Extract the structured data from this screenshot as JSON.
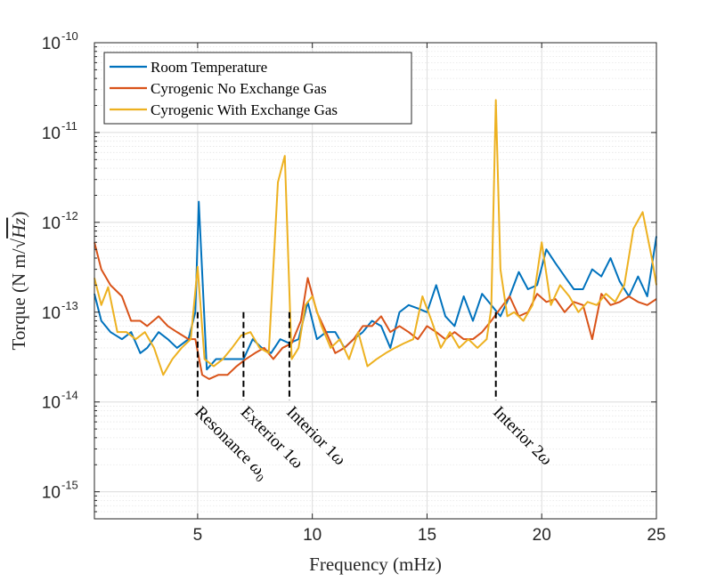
{
  "chart_data": {
    "type": "line",
    "title": "",
    "xlabel": "Frequency (mHz)",
    "ylabel_parts": {
      "prefix": "Torque (N m/",
      "radicand": "Hz",
      "suffix": ")"
    },
    "xlim": [
      0.5,
      25
    ],
    "ylim": [
      5e-16,
      1e-10
    ],
    "yscale": "log",
    "grid": true,
    "x_ticks": [
      5,
      10,
      15,
      20,
      25
    ],
    "x_tick_labels": [
      "5",
      "10",
      "15",
      "20",
      "25"
    ],
    "y_ticks": [
      1e-15,
      1e-14,
      1e-13,
      1e-12,
      1e-11,
      1e-10
    ],
    "y_tick_labels": [
      {
        "base": "10",
        "exp": "-15"
      },
      {
        "base": "10",
        "exp": "-14"
      },
      {
        "base": "10",
        "exp": "-13"
      },
      {
        "base": "10",
        "exp": "-12"
      },
      {
        "base": "10",
        "exp": "-11"
      },
      {
        "base": "10",
        "exp": "-10"
      }
    ],
    "legend_position": "top-left",
    "series": [
      {
        "name": "Room Temperature",
        "color": "#0072BD",
        "x": [
          0.5,
          0.8,
          1.2,
          1.7,
          2.1,
          2.5,
          2.8,
          3.3,
          3.7,
          4.1,
          4.6,
          4.9,
          5.05,
          5.4,
          5.8,
          6.2,
          6.6,
          7.0,
          7.4,
          7.8,
          8.2,
          8.6,
          9.0,
          9.4,
          9.8,
          10.2,
          10.6,
          11.0,
          11.4,
          11.8,
          12.2,
          12.6,
          13.0,
          13.4,
          13.8,
          14.2,
          14.6,
          15.0,
          15.4,
          15.8,
          16.2,
          16.6,
          17.0,
          17.4,
          17.8,
          18.2,
          18.6,
          19.0,
          19.4,
          19.8,
          20.2,
          20.6,
          21.0,
          21.4,
          21.8,
          22.2,
          22.6,
          23.0,
          23.4,
          23.8,
          24.2,
          24.6,
          25.0
        ],
        "values": [
          1.6e-13,
          8e-14,
          6e-14,
          5e-14,
          6e-14,
          3.5e-14,
          4e-14,
          6e-14,
          5e-14,
          4e-14,
          5e-14,
          1e-13,
          1.7e-12,
          2.3e-14,
          3e-14,
          3e-14,
          3e-14,
          3e-14,
          5e-14,
          4e-14,
          3.5e-14,
          5e-14,
          4.5e-14,
          5e-14,
          1.3e-13,
          5e-14,
          6e-14,
          6e-14,
          4e-14,
          5e-14,
          6e-14,
          8e-14,
          7e-14,
          4e-14,
          1e-13,
          1.2e-13,
          1.1e-13,
          1e-13,
          2e-13,
          9e-14,
          7e-14,
          1.5e-13,
          8e-14,
          1.6e-13,
          1.2e-13,
          9e-14,
          1.5e-13,
          2.8e-13,
          1.8e-13,
          2e-13,
          5e-13,
          3.5e-13,
          2.5e-13,
          1.8e-13,
          1.8e-13,
          3e-13,
          2.5e-13,
          4e-13,
          2.2e-13,
          1.5e-13,
          2.5e-13,
          1.5e-13,
          7e-13
        ]
      },
      {
        "name": "Cyrogenic No Exchange Gas",
        "color": "#D95319",
        "x": [
          0.5,
          0.8,
          1.2,
          1.7,
          2.1,
          2.5,
          2.8,
          3.3,
          3.7,
          4.1,
          4.6,
          4.9,
          5.2,
          5.5,
          5.9,
          6.3,
          6.7,
          7.1,
          7.5,
          7.9,
          8.3,
          8.7,
          9.1,
          9.5,
          9.8,
          10.2,
          10.6,
          11.0,
          11.4,
          11.8,
          12.2,
          12.6,
          13.0,
          13.4,
          13.8,
          14.2,
          14.6,
          15.0,
          15.4,
          15.8,
          16.2,
          16.6,
          17.0,
          17.4,
          17.8,
          18.2,
          18.6,
          19.0,
          19.4,
          19.8,
          20.2,
          20.6,
          21.0,
          21.4,
          21.8,
          22.2,
          22.6,
          23.0,
          23.4,
          23.8,
          24.2,
          24.6,
          25.0
        ],
        "values": [
          6e-13,
          3e-13,
          2e-13,
          1.5e-13,
          8e-14,
          8e-14,
          7e-14,
          9e-14,
          7e-14,
          6e-14,
          5e-14,
          5e-14,
          2e-14,
          1.8e-14,
          2e-14,
          2e-14,
          2.5e-14,
          3e-14,
          3.5e-14,
          4e-14,
          3e-14,
          4e-14,
          4.5e-14,
          8e-14,
          2.4e-13,
          1e-13,
          6e-14,
          3.5e-14,
          4e-14,
          5e-14,
          7e-14,
          7e-14,
          9e-14,
          6e-14,
          7e-14,
          6e-14,
          5e-14,
          7e-14,
          6e-14,
          5e-14,
          6e-14,
          5e-14,
          5e-14,
          6e-14,
          8e-14,
          1.1e-13,
          1.5e-13,
          9e-14,
          1e-13,
          1.6e-13,
          1.3e-13,
          1.4e-13,
          1e-13,
          1.3e-13,
          1.2e-13,
          5e-14,
          1.6e-13,
          1.2e-13,
          1.3e-13,
          1.5e-13,
          1.3e-13,
          1.2e-13,
          1.4e-13
        ]
      },
      {
        "name": "Cyrogenic With Exchange Gas",
        "color": "#EDB120",
        "x": [
          0.5,
          0.8,
          1.1,
          1.5,
          1.9,
          2.3,
          2.7,
          3.1,
          3.5,
          3.9,
          4.3,
          4.7,
          5.0,
          5.3,
          5.7,
          6.1,
          6.5,
          6.9,
          7.3,
          7.7,
          8.1,
          8.5,
          8.8,
          9.1,
          9.4,
          9.7,
          10.0,
          10.4,
          10.8,
          11.2,
          11.6,
          12.0,
          12.4,
          12.8,
          13.2,
          13.6,
          14.0,
          14.4,
          14.8,
          15.2,
          15.6,
          16.0,
          16.4,
          16.8,
          17.2,
          17.6,
          17.8,
          18.0,
          18.2,
          18.5,
          18.8,
          19.2,
          19.6,
          20.0,
          20.4,
          20.8,
          21.2,
          21.6,
          22.0,
          22.4,
          22.8,
          23.2,
          23.6,
          24.0,
          24.4,
          24.8,
          25.0
        ],
        "values": [
          2.4e-13,
          1.2e-13,
          1.9e-13,
          6e-14,
          6e-14,
          5e-14,
          6e-14,
          4e-14,
          2e-14,
          3e-14,
          4e-14,
          5e-14,
          3.2e-13,
          3e-14,
          2.5e-14,
          3e-14,
          4e-14,
          5.5e-14,
          6e-14,
          4e-14,
          3.5e-14,
          2.8e-12,
          5.5e-12,
          3e-14,
          4e-14,
          1.2e-13,
          1.5e-13,
          7e-14,
          4e-14,
          5e-14,
          3e-14,
          6e-14,
          2.5e-14,
          3e-14,
          3.5e-14,
          4e-14,
          4.5e-14,
          5e-14,
          1.5e-13,
          8e-14,
          4e-14,
          6e-14,
          4e-14,
          5e-14,
          4e-14,
          5e-14,
          1.1e-13,
          2.3e-11,
          3e-13,
          9e-14,
          1e-13,
          8e-14,
          1.2e-13,
          6e-13,
          1.2e-13,
          2e-13,
          1.5e-13,
          1e-13,
          1.3e-13,
          1.2e-13,
          1.6e-13,
          1.3e-13,
          2e-13,
          8.5e-13,
          1.3e-12,
          4e-13,
          2e-13
        ]
      }
    ],
    "annotations": [
      {
        "text_main": "Resonance ",
        "text_symbol": "ω",
        "text_sub": "0",
        "x": 5.0,
        "y": 1e-13
      },
      {
        "text_main": "Exterior 1",
        "text_symbol": "ω",
        "text_sub": "",
        "x": 7.0,
        "y": 1e-13
      },
      {
        "text_main": "Interior 1",
        "text_symbol": "ω",
        "text_sub": "",
        "x": 9.0,
        "y": 1e-13
      },
      {
        "text_main": "Interior 2",
        "text_symbol": "ω",
        "text_sub": "",
        "x": 18.0,
        "y": 1e-13
      }
    ]
  }
}
